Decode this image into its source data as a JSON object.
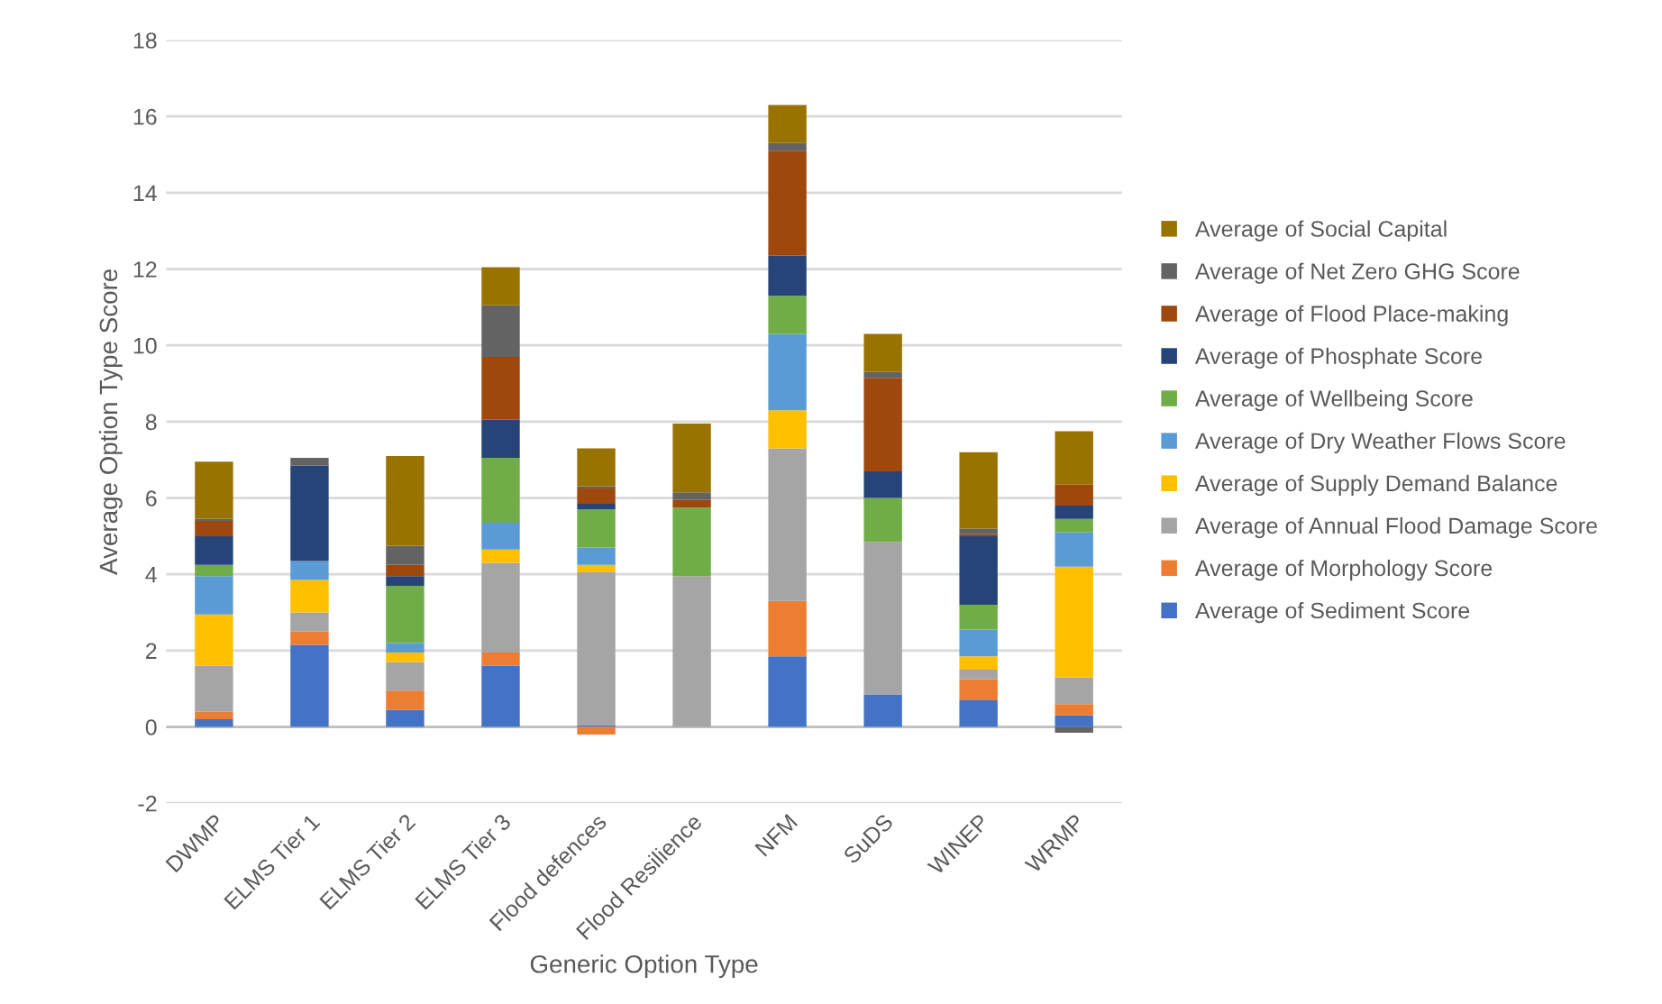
{
  "chart_data": {
    "type": "bar",
    "stacked": true,
    "xlabel": "Generic Option Type",
    "ylabel": "Average Option Type Score",
    "categories": [
      "DWMP",
      "ELMS Tier 1",
      "ELMS Tier 2",
      "ELMS Tier 3",
      "Flood defences",
      "Flood Resilience",
      "NFM",
      "SuDS",
      "WINEP",
      "WRMP"
    ],
    "ylim": [
      -2,
      18
    ],
    "yticks": [
      -2,
      0,
      2,
      4,
      6,
      8,
      10,
      12,
      14,
      16,
      18
    ],
    "grid": "y",
    "legend": "right",
    "series": [
      {
        "name": "Average of Sediment Score",
        "color": "#4472c4",
        "values": [
          0.2,
          2.15,
          0.45,
          1.6,
          0.05,
          0,
          1.85,
          0.85,
          0.7,
          0.3
        ]
      },
      {
        "name": "Average of Morphology Score",
        "color": "#ed7d31",
        "values": [
          0.2,
          0.35,
          0.5,
          0.35,
          -0.2,
          0,
          1.45,
          0,
          0.55,
          0.3
        ]
      },
      {
        "name": "Average of Annual Flood Damage Score",
        "color": "#a5a5a5",
        "values": [
          1.2,
          0.5,
          0.75,
          2.35,
          4.0,
          3.95,
          4.0,
          4.0,
          0.25,
          0.7
        ]
      },
      {
        "name": "Average of Supply Demand Balance",
        "color": "#ffc000",
        "values": [
          1.35,
          0.85,
          0.25,
          0.35,
          0.2,
          0,
          1.0,
          0,
          0.35,
          2.9
        ]
      },
      {
        "name": "Average of Dry Weather Flows Score",
        "color": "#5b9bd5",
        "values": [
          1.0,
          0.5,
          0.25,
          0.7,
          0.45,
          0,
          2.0,
          0,
          0.7,
          0.9
        ]
      },
      {
        "name": "Average of Wellbeing Score",
        "color": "#70ad47",
        "values": [
          0.3,
          0,
          1.5,
          1.7,
          1.0,
          1.8,
          1.0,
          1.15,
          0.65,
          0.35
        ]
      },
      {
        "name": "Average of Phosphate Score",
        "color": "#264478",
        "values": [
          0.75,
          2.5,
          0.25,
          1.0,
          0.15,
          0,
          1.05,
          0.7,
          1.8,
          0.35
        ]
      },
      {
        "name": "Average of Flood Place-making",
        "color": "#9e480e",
        "values": [
          0.4,
          0,
          0.3,
          1.65,
          0.4,
          0.2,
          2.75,
          2.45,
          0.05,
          0.55
        ]
      },
      {
        "name": "Average of Net Zero GHG Score",
        "color": "#636363",
        "values": [
          0.05,
          0.2,
          0.5,
          1.35,
          0.05,
          0.2,
          0.2,
          0.15,
          0.15,
          -0.15
        ]
      },
      {
        "name": "Average of Social Capital",
        "color": "#997300",
        "values": [
          1.5,
          0,
          2.35,
          1.0,
          1.0,
          1.8,
          1.0,
          1.0,
          2.0,
          1.4
        ]
      }
    ]
  }
}
